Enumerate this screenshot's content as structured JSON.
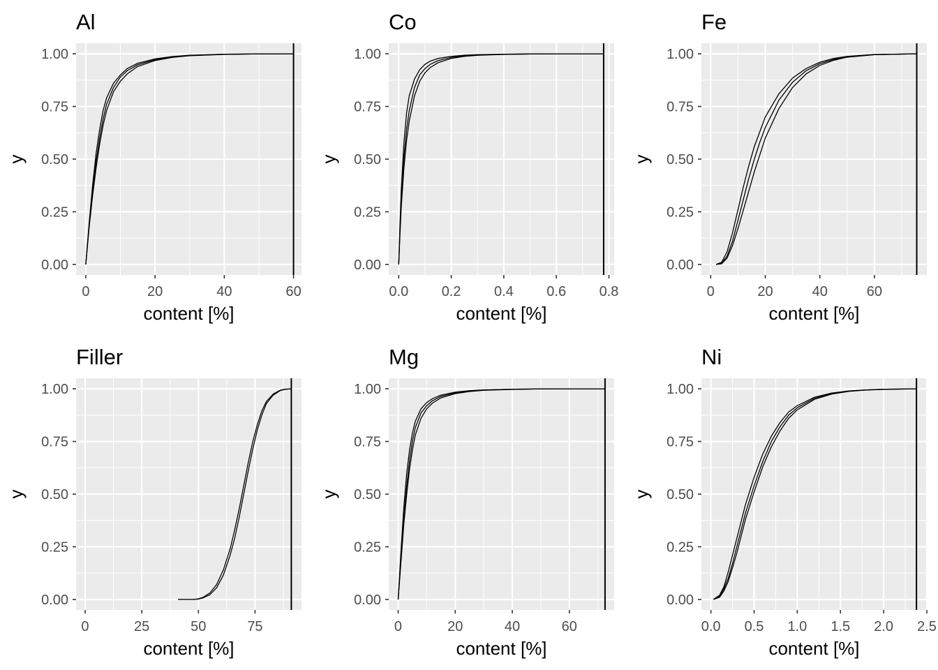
{
  "chart_data": [
    {
      "type": "line",
      "title": "Al",
      "xlabel": "content [%]",
      "ylabel": "y",
      "xlim": [
        -2.8,
        62.3
      ],
      "ylim": [
        -0.05,
        1.05
      ],
      "x_ticks": [
        0,
        20,
        40,
        60
      ],
      "x_tick_labels": [
        "0",
        "20",
        "40",
        "60"
      ],
      "y_ticks": [
        0,
        0.25,
        0.5,
        0.75,
        1
      ],
      "y_tick_labels": [
        "0.00",
        "0.25",
        "0.50",
        "0.75",
        "1.00"
      ],
      "vline_x": 60,
      "series": [
        {
          "x": [
            0.0,
            1.0,
            2.0,
            3.0,
            4.0,
            5.0,
            6.0,
            8.0,
            10.0,
            12.0,
            15.0,
            20.0,
            25.0,
            30.0,
            40.0,
            50.0,
            60.0
          ],
          "y": [
            0.0,
            0.2,
            0.38,
            0.53,
            0.64,
            0.73,
            0.79,
            0.86,
            0.9,
            0.93,
            0.955,
            0.976,
            0.987,
            0.993,
            0.998,
            0.9995,
            1.0
          ]
        },
        {
          "x": [
            0.0,
            1.0,
            2.0,
            3.0,
            4.0,
            5.0,
            6.0,
            8.0,
            10.0,
            12.0,
            15.0,
            20.0,
            25.0,
            30.0,
            40.0,
            50.0,
            60.0
          ],
          "y": [
            0.0,
            0.19,
            0.35,
            0.49,
            0.6,
            0.69,
            0.76,
            0.84,
            0.89,
            0.92,
            0.948,
            0.972,
            0.985,
            0.992,
            0.998,
            0.9995,
            1.0
          ]
        },
        {
          "x": [
            0.0,
            1.0,
            2.0,
            3.0,
            4.0,
            5.0,
            6.0,
            8.0,
            10.0,
            12.0,
            15.0,
            20.0,
            25.0,
            30.0,
            40.0,
            50.0,
            60.0
          ],
          "y": [
            0.0,
            0.18,
            0.33,
            0.46,
            0.57,
            0.66,
            0.73,
            0.82,
            0.87,
            0.905,
            0.94,
            0.968,
            0.983,
            0.991,
            0.997,
            0.9995,
            1.0
          ]
        }
      ]
    },
    {
      "type": "line",
      "title": "Co",
      "xlabel": "content [%]",
      "ylabel": "y",
      "xlim": [
        -0.038,
        0.82
      ],
      "ylim": [
        -0.05,
        1.05
      ],
      "x_ticks": [
        0,
        0.2,
        0.4,
        0.6,
        0.8
      ],
      "x_tick_labels": [
        "0.0",
        "0.2",
        "0.4",
        "0.6",
        "0.8"
      ],
      "y_ticks": [
        0,
        0.25,
        0.5,
        0.75,
        1
      ],
      "y_tick_labels": [
        "0.00",
        "0.25",
        "0.50",
        "0.75",
        "1.00"
      ],
      "vline_x": 0.78,
      "series": [
        {
          "x": [
            0.0,
            0.005,
            0.01,
            0.02,
            0.03,
            0.04,
            0.06,
            0.08,
            0.1,
            0.12,
            0.15,
            0.2,
            0.25,
            0.3,
            0.4,
            0.5,
            0.6,
            0.78
          ],
          "y": [
            0.0,
            0.2,
            0.36,
            0.58,
            0.72,
            0.8,
            0.88,
            0.925,
            0.95,
            0.965,
            0.978,
            0.988,
            0.993,
            0.996,
            0.998,
            0.9993,
            0.9998,
            1.0
          ]
        },
        {
          "x": [
            0.0,
            0.005,
            0.01,
            0.02,
            0.03,
            0.04,
            0.06,
            0.08,
            0.1,
            0.12,
            0.15,
            0.2,
            0.25,
            0.3,
            0.4,
            0.5,
            0.6,
            0.78
          ],
          "y": [
            0.0,
            0.17,
            0.31,
            0.51,
            0.64,
            0.73,
            0.84,
            0.9,
            0.93,
            0.95,
            0.968,
            0.983,
            0.99,
            0.994,
            0.998,
            0.9993,
            0.9998,
            1.0
          ]
        },
        {
          "x": [
            0.0,
            0.005,
            0.01,
            0.02,
            0.03,
            0.04,
            0.06,
            0.08,
            0.1,
            0.12,
            0.15,
            0.2,
            0.25,
            0.3,
            0.4,
            0.5,
            0.6,
            0.78
          ],
          "y": [
            0.0,
            0.15,
            0.28,
            0.46,
            0.59,
            0.68,
            0.8,
            0.87,
            0.91,
            0.935,
            0.958,
            0.978,
            0.988,
            0.993,
            0.997,
            0.9992,
            0.9998,
            1.0
          ]
        }
      ]
    },
    {
      "type": "line",
      "title": "Fe",
      "xlabel": "content [%]",
      "ylabel": "y",
      "xlim": [
        -3.4,
        79.2
      ],
      "ylim": [
        -0.05,
        1.05
      ],
      "x_ticks": [
        0,
        20,
        40,
        60
      ],
      "x_tick_labels": [
        "0",
        "20",
        "40",
        "60"
      ],
      "y_ticks": [
        0,
        0.25,
        0.5,
        0.75,
        1
      ],
      "y_tick_labels": [
        "0.00",
        "0.25",
        "0.50",
        "0.75",
        "1.00"
      ],
      "vline_x": 75.5,
      "series": [
        {
          "x": [
            2.0,
            4.0,
            6.0,
            8.0,
            10.0,
            12.0,
            14.0,
            16.0,
            18.0,
            20.0,
            25.0,
            30.0,
            35.0,
            40.0,
            45.0,
            50.0,
            60.0,
            75.5
          ],
          "y": [
            0.0,
            0.01,
            0.06,
            0.15,
            0.26,
            0.37,
            0.47,
            0.56,
            0.63,
            0.7,
            0.81,
            0.885,
            0.93,
            0.96,
            0.978,
            0.988,
            0.997,
            1.0
          ]
        },
        {
          "x": [
            2.0,
            4.0,
            6.0,
            8.0,
            10.0,
            12.0,
            14.0,
            16.0,
            18.0,
            20.0,
            25.0,
            30.0,
            35.0,
            40.0,
            45.0,
            50.0,
            60.0,
            75.5
          ],
          "y": [
            0.0,
            0.005,
            0.04,
            0.11,
            0.21,
            0.31,
            0.41,
            0.5,
            0.58,
            0.65,
            0.78,
            0.865,
            0.92,
            0.953,
            0.973,
            0.986,
            0.996,
            1.0
          ]
        },
        {
          "x": [
            2.0,
            4.0,
            6.0,
            8.0,
            10.0,
            12.0,
            14.0,
            16.0,
            18.0,
            20.0,
            25.0,
            30.0,
            35.0,
            40.0,
            45.0,
            50.0,
            60.0,
            75.5
          ],
          "y": [
            0.0,
            0.003,
            0.03,
            0.09,
            0.17,
            0.26,
            0.35,
            0.44,
            0.52,
            0.6,
            0.74,
            0.84,
            0.905,
            0.945,
            0.969,
            0.984,
            0.996,
            1.0
          ]
        }
      ]
    },
    {
      "type": "line",
      "title": "Filler",
      "xlabel": "content [%]",
      "ylabel": "y",
      "xlim": [
        -4,
        95.5
      ],
      "ylim": [
        -0.05,
        1.05
      ],
      "x_ticks": [
        0,
        25,
        50,
        75
      ],
      "x_tick_labels": [
        "0",
        "25",
        "50",
        "75"
      ],
      "y_ticks": [
        0,
        0.25,
        0.5,
        0.75,
        1
      ],
      "y_tick_labels": [
        "0.00",
        "0.25",
        "0.50",
        "0.75",
        "1.00"
      ],
      "vline_x": 91,
      "series": [
        {
          "x": [
            41.0,
            48.0,
            50.0,
            52.0,
            55.0,
            58.0,
            61.0,
            64.0,
            66.0,
            68.0,
            70.0,
            72.0,
            74.0,
            76.0,
            78.0,
            80.0,
            83.0,
            86.0,
            88.0,
            91.0
          ],
          "y": [
            0.0,
            0.0,
            0.003,
            0.01,
            0.03,
            0.07,
            0.14,
            0.24,
            0.33,
            0.43,
            0.54,
            0.65,
            0.75,
            0.83,
            0.895,
            0.94,
            0.975,
            0.993,
            0.998,
            1.0
          ]
        },
        {
          "x": [
            41.0,
            48.0,
            50.0,
            52.0,
            55.0,
            58.0,
            61.0,
            64.0,
            66.0,
            68.0,
            70.0,
            72.0,
            74.0,
            76.0,
            78.0,
            80.0,
            83.0,
            86.0,
            88.0,
            91.0
          ],
          "y": [
            0.0,
            0.0,
            0.002,
            0.007,
            0.022,
            0.055,
            0.115,
            0.21,
            0.29,
            0.39,
            0.5,
            0.61,
            0.715,
            0.805,
            0.875,
            0.93,
            0.97,
            0.991,
            0.997,
            1.0
          ]
        }
      ]
    },
    {
      "type": "line",
      "title": "Mg",
      "xlabel": "content [%]",
      "ylabel": "y",
      "xlim": [
        -3.3,
        75.7
      ],
      "ylim": [
        -0.05,
        1.05
      ],
      "x_ticks": [
        0,
        20,
        40,
        60
      ],
      "x_tick_labels": [
        "0",
        "20",
        "40",
        "60"
      ],
      "y_ticks": [
        0,
        0.25,
        0.5,
        0.75,
        1
      ],
      "y_tick_labels": [
        "0.00",
        "0.25",
        "0.50",
        "0.75",
        "1.00"
      ],
      "vline_x": 72.5,
      "series": [
        {
          "x": [
            0.0,
            1.0,
            2.0,
            3.0,
            4.0,
            5.0,
            6.0,
            8.0,
            10.0,
            12.0,
            15.0,
            20.0,
            25.0,
            30.0,
            40.0,
            50.0,
            60.0,
            72.5
          ],
          "y": [
            0.0,
            0.23,
            0.44,
            0.6,
            0.71,
            0.79,
            0.845,
            0.905,
            0.935,
            0.953,
            0.97,
            0.984,
            0.991,
            0.995,
            0.998,
            0.9995,
            0.9999,
            1.0
          ]
        },
        {
          "x": [
            0.0,
            1.0,
            2.0,
            3.0,
            4.0,
            5.0,
            6.0,
            8.0,
            10.0,
            12.0,
            15.0,
            20.0,
            25.0,
            30.0,
            40.0,
            50.0,
            60.0,
            72.5
          ],
          "y": [
            0.0,
            0.2,
            0.39,
            0.54,
            0.66,
            0.75,
            0.815,
            0.885,
            0.92,
            0.943,
            0.964,
            0.981,
            0.989,
            0.994,
            0.998,
            0.9995,
            0.9999,
            1.0
          ]
        },
        {
          "x": [
            0.0,
            1.0,
            2.0,
            3.0,
            4.0,
            5.0,
            6.0,
            8.0,
            10.0,
            12.0,
            15.0,
            20.0,
            25.0,
            30.0,
            40.0,
            50.0,
            60.0,
            72.5
          ],
          "y": [
            0.0,
            0.18,
            0.36,
            0.5,
            0.62,
            0.71,
            0.78,
            0.86,
            0.905,
            0.932,
            0.957,
            0.977,
            0.987,
            0.993,
            0.997,
            0.9994,
            0.9999,
            1.0
          ]
        }
      ]
    },
    {
      "type": "line",
      "title": "Ni",
      "xlabel": "content [%]",
      "ylabel": "y",
      "xlim": [
        -0.11,
        2.5
      ],
      "ylim": [
        -0.05,
        1.05
      ],
      "x_ticks": [
        0,
        0.5,
        1,
        1.5,
        2,
        2.5
      ],
      "x_tick_labels": [
        "0.0",
        "0.5",
        "1.0",
        "1.5",
        "2.0",
        "2.5"
      ],
      "y_ticks": [
        0,
        0.25,
        0.5,
        0.75,
        1
      ],
      "y_tick_labels": [
        "0.00",
        "0.25",
        "0.50",
        "0.75",
        "1.00"
      ],
      "vline_x": 2.38,
      "series": [
        {
          "x": [
            0.03,
            0.1,
            0.15,
            0.2,
            0.25,
            0.3,
            0.35,
            0.4,
            0.5,
            0.6,
            0.7,
            0.8,
            0.9,
            1.0,
            1.2,
            1.4,
            1.6,
            1.8,
            2.0,
            2.38
          ],
          "y": [
            0.0,
            0.02,
            0.06,
            0.13,
            0.21,
            0.29,
            0.37,
            0.45,
            0.58,
            0.69,
            0.775,
            0.84,
            0.89,
            0.92,
            0.96,
            0.98,
            0.99,
            0.995,
            0.998,
            1.0
          ]
        },
        {
          "x": [
            0.03,
            0.1,
            0.15,
            0.2,
            0.25,
            0.3,
            0.35,
            0.4,
            0.5,
            0.6,
            0.7,
            0.8,
            0.9,
            1.0,
            1.2,
            1.4,
            1.6,
            1.8,
            2.0,
            2.38
          ],
          "y": [
            0.0,
            0.015,
            0.05,
            0.1,
            0.17,
            0.25,
            0.33,
            0.41,
            0.54,
            0.655,
            0.75,
            0.82,
            0.875,
            0.91,
            0.955,
            0.978,
            0.989,
            0.995,
            0.998,
            1.0
          ]
        },
        {
          "x": [
            0.03,
            0.1,
            0.15,
            0.2,
            0.25,
            0.3,
            0.35,
            0.4,
            0.5,
            0.6,
            0.7,
            0.8,
            0.9,
            1.0,
            1.2,
            1.4,
            1.6,
            1.8,
            2.0,
            2.38
          ],
          "y": [
            0.0,
            0.01,
            0.04,
            0.085,
            0.15,
            0.22,
            0.3,
            0.38,
            0.51,
            0.63,
            0.725,
            0.8,
            0.86,
            0.9,
            0.95,
            0.975,
            0.988,
            0.994,
            0.997,
            1.0
          ]
        }
      ]
    }
  ]
}
